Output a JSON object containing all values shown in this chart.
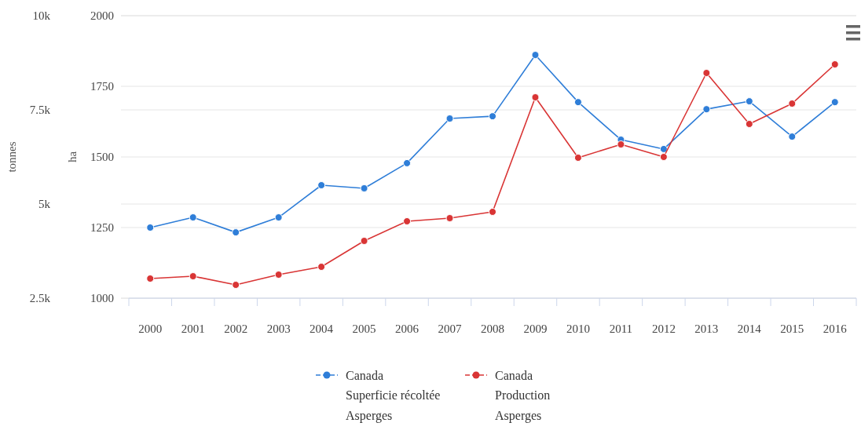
{
  "chart_data": {
    "type": "line",
    "ylabel": "ha",
    "y2label": "tonnes",
    "categories": [
      "2000",
      "2001",
      "2002",
      "2003",
      "2004",
      "2005",
      "2006",
      "2007",
      "2008",
      "2009",
      "2010",
      "2011",
      "2012",
      "2013",
      "2014",
      "2015",
      "2016"
    ],
    "series": [
      {
        "name": "Canada\nSuperficie récoltée\nAsperges",
        "color": "#2f7ed8",
        "values": [
          1250,
          1286,
          1233,
          1286,
          1400,
          1389,
          1478,
          1636,
          1644,
          1861,
          1694,
          1561,
          1528,
          1669,
          1697,
          1572,
          1694
        ]
      },
      {
        "name": "Canada\nProduction\nAsperges",
        "color": "#d93535",
        "axis": "y2",
        "values": [
          3021,
          3083,
          2854,
          3125,
          3333,
          4021,
          4542,
          4625,
          4792,
          7833,
          6229,
          6583,
          6250,
          8479,
          7125,
          7667,
          8708
        ]
      }
    ],
    "ylim": [
      1000,
      2000
    ],
    "yticks": [
      1000,
      1250,
      1500,
      1750,
      2000
    ],
    "y2lim": [
      2500,
      10000
    ],
    "y2ticks": [
      {
        "value": 2500,
        "label": "2.5k"
      },
      {
        "value": 5000,
        "label": "5k"
      },
      {
        "value": 7500,
        "label": "7.5k"
      },
      {
        "value": 10000,
        "label": "10k"
      }
    ],
    "grid": "y",
    "legend": "bottom",
    "marker": "circle",
    "line_style": "solid"
  }
}
